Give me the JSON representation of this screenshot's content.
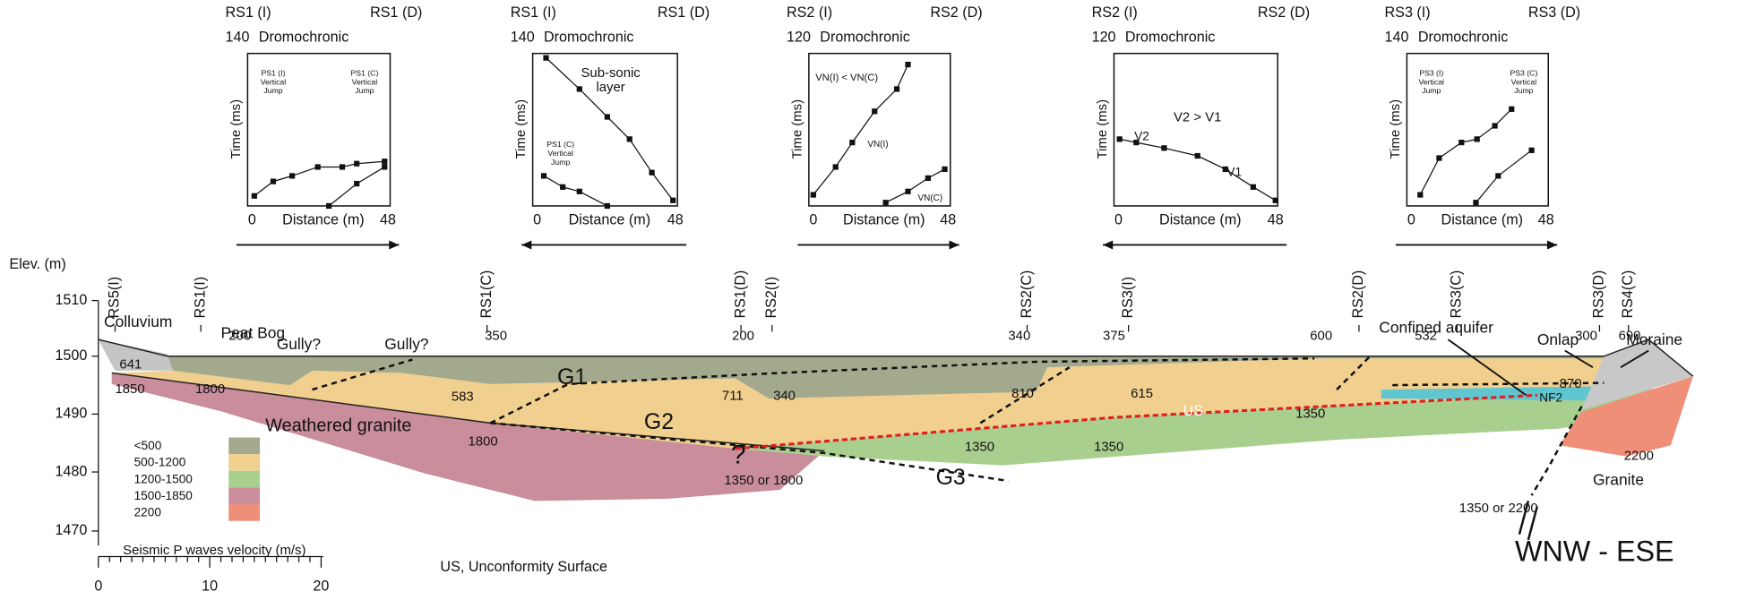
{
  "insets": [
    {
      "left": "RS1 (I)",
      "right": "RS1 (D)",
      "max": "140",
      "kind": "Dromochronic",
      "ylabel": "Time (ms)",
      "xlabel": "Distance (m)",
      "x0": "0",
      "x1": "48",
      "notes": [
        [
          "PS1 (I)",
          "Vertical",
          "Jump"
        ],
        [
          "PS1 (C)",
          "Vertical",
          "Jump"
        ]
      ]
    },
    {
      "left": "RS1 (I)",
      "right": "RS1 (D)",
      "max": "140",
      "kind": "Dromochronic",
      "ylabel": "Time (ms)",
      "xlabel": "Distance (m)",
      "x0": "0",
      "x1": "48",
      "notes": [
        [
          "Sub-sonic",
          "layer"
        ],
        [
          "PS1 (C)",
          "Vertical",
          "Jump"
        ]
      ]
    },
    {
      "left": "RS2 (I)",
      "right": "RS2 (D)",
      "max": "120",
      "kind": "Dromochronic",
      "ylabel": "Time (ms)",
      "xlabel": "Distance (m)",
      "x0": "0",
      "x1": "48",
      "notes": [
        [
          "VN(I) < VN(C)"
        ],
        [
          "VN(I)"
        ],
        [
          "VN(C)"
        ]
      ]
    },
    {
      "left": "RS2 (I)",
      "right": "RS2 (D)",
      "max": "120",
      "kind": "Dromochronic",
      "ylabel": "Time (ms)",
      "xlabel": "Distance (m)",
      "x0": "0",
      "x1": "48",
      "notes": [
        [
          "V2 > V1"
        ],
        [
          "V2"
        ],
        [
          "V1"
        ]
      ]
    },
    {
      "left": "RS3 (I)",
      "right": "RS3 (D)",
      "max": "140",
      "kind": "Dromochronic",
      "ylabel": "Time (ms)",
      "xlabel": "Distance (m)",
      "x0": "0",
      "x1": "48",
      "notes": [
        [
          "PS3 (I)",
          "Vertical",
          "Jump"
        ],
        [
          "PS3 (C)",
          "Vertical",
          "Jump"
        ]
      ]
    }
  ],
  "profile_labels": [
    "RS5(I)",
    "RS1(I)",
    "RS1(C)",
    "RS1(D)",
    "RS2(I)",
    "RS2(C)",
    "RS3(I)",
    "RS2(D)",
    "RS3(C)",
    "RS3(D)",
    "RS4(C)"
  ],
  "elevation_axis": {
    "title": "Elev. (m)",
    "ticks": [
      "1510",
      "1500",
      "1490",
      "1480",
      "1470"
    ]
  },
  "scale_bar": {
    "ticks": [
      "0",
      "10",
      "20"
    ]
  },
  "legend": {
    "title": "Seismic P waves velocity (m/s)",
    "items": [
      "<500",
      "500-1200",
      "1200-1500",
      "1500-1850",
      "2200"
    ]
  },
  "features": [
    "Colluvium",
    "Peat Bog",
    "Gully?",
    "Gully?",
    "Confined aquifer",
    "Onlap",
    "Moraine",
    "Weathered granite",
    "Granite",
    "US",
    "?",
    "NF2",
    "G1",
    "G2",
    "G3"
  ],
  "velocities": [
    "200",
    "350",
    "200",
    "340",
    "375",
    "600",
    "532",
    "300",
    "690",
    "641",
    "1850",
    "1800",
    "583",
    "711",
    "340",
    "810",
    "615",
    "1350",
    "870",
    "1800",
    "1350",
    "1350",
    "1350 or 1800",
    "1350 or 2200",
    "2200"
  ],
  "caption": "US, Unconformity Surface",
  "direction": "WNW - ESE"
}
